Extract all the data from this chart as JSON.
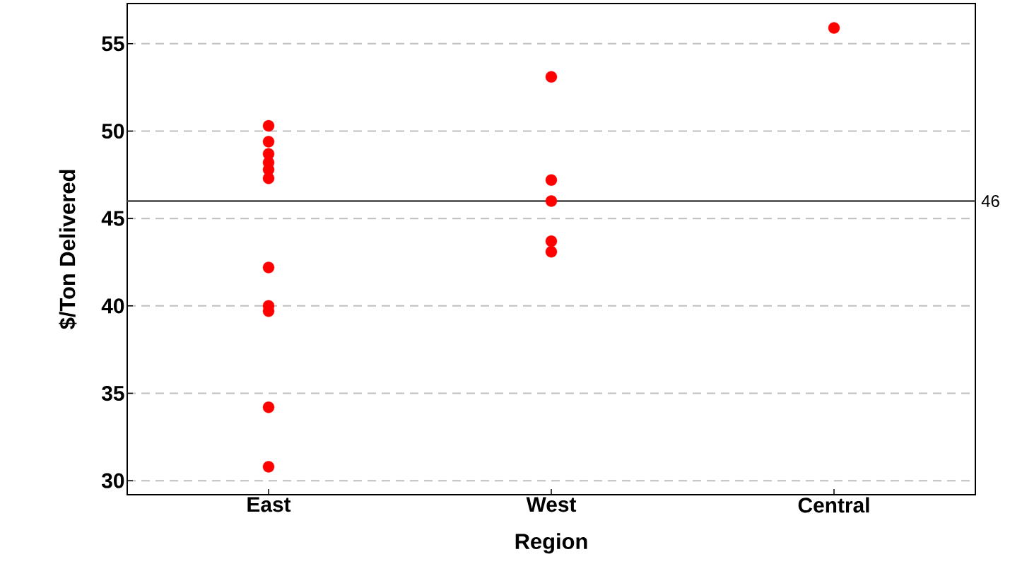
{
  "chart_data": {
    "type": "scatter",
    "xlabel": "Region",
    "ylabel": "$/Ton Delivered",
    "categories": [
      "East",
      "West",
      "Central"
    ],
    "series": [
      {
        "color": "#ff0000",
        "x": [
          "East",
          "East",
          "East",
          "East",
          "East",
          "East",
          "East",
          "East",
          "East",
          "East",
          "East",
          "West",
          "West",
          "West",
          "West",
          "West",
          "Central"
        ],
        "values": [
          50.3,
          49.4,
          48.7,
          48.2,
          47.8,
          47.3,
          42.2,
          40.0,
          39.7,
          34.2,
          30.8,
          53.1,
          47.2,
          46.0,
          43.7,
          43.1,
          55.9
        ]
      }
    ],
    "ylim": [
      29.2,
      57.3
    ],
    "yticks": [
      30,
      35,
      40,
      45,
      50,
      55
    ],
    "ref_lines": [
      {
        "axis": "y",
        "value": 46,
        "label": "46",
        "color": "#404040",
        "line_style": "solid"
      }
    ],
    "grid": "y"
  }
}
